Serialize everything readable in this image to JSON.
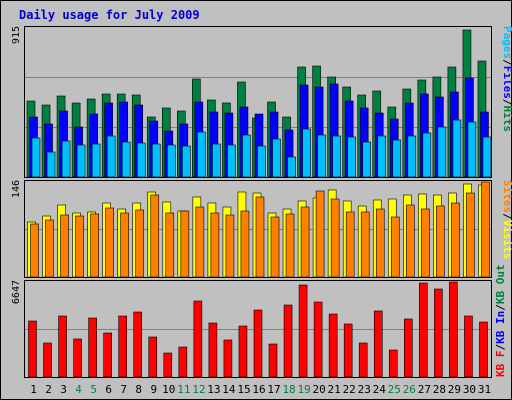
{
  "chart_data": [
    {
      "type": "bar",
      "title": "Daily usage for July 2009",
      "categories": [
        "1",
        "2",
        "3",
        "4",
        "5",
        "6",
        "7",
        "8",
        "9",
        "10",
        "11",
        "12",
        "13",
        "14",
        "15",
        "16",
        "17",
        "18",
        "19",
        "20",
        "21",
        "22",
        "23",
        "24",
        "25",
        "26",
        "27",
        "28",
        "29",
        "30",
        "31"
      ],
      "weekend_days": [
        "4",
        "5",
        "11",
        "12",
        "18",
        "19",
        "25",
        "26"
      ],
      "ymax_label": "915",
      "ylim": [
        0,
        915
      ],
      "legend": [
        "Hits",
        "Files",
        "Pages"
      ],
      "legend_separator": "/",
      "series": [
        {
          "name": "Hits",
          "color": "#008040",
          "values": [
            465,
            437,
            493,
            454,
            476,
            508,
            509,
            502,
            366,
            418,
            403,
            595,
            471,
            452,
            577,
            362,
            455,
            368,
            671,
            679,
            613,
            550,
            499,
            524,
            426,
            535,
            591,
            609,
            674,
            895,
            705
          ]
        },
        {
          "name": "Files",
          "color": "#0000ff",
          "values": [
            369,
            323,
            405,
            303,
            387,
            454,
            456,
            437,
            344,
            279,
            326,
            458,
            395,
            390,
            424,
            386,
            399,
            289,
            563,
            546,
            568,
            466,
            418,
            391,
            352,
            453,
            509,
            491,
            521,
            601,
            394
          ]
        },
        {
          "name": "Pages",
          "color": "#00bfff",
          "values": [
            238,
            153,
            217,
            193,
            200,
            252,
            213,
            210,
            204,
            198,
            187,
            272,
            199,
            196,
            254,
            190,
            230,
            122,
            292,
            258,
            249,
            246,
            212,
            249,
            225,
            249,
            271,
            302,
            348,
            338,
            242
          ]
        }
      ]
    },
    {
      "type": "bar",
      "categories": [
        "1",
        "2",
        "3",
        "4",
        "5",
        "6",
        "7",
        "8",
        "9",
        "10",
        "11",
        "12",
        "13",
        "14",
        "15",
        "16",
        "17",
        "18",
        "19",
        "20",
        "21",
        "22",
        "23",
        "24",
        "25",
        "26",
        "27",
        "28",
        "29",
        "30",
        "31"
      ],
      "ymax_label": "146",
      "ylim": [
        0,
        146
      ],
      "legend": [
        "Visits",
        "Sites"
      ],
      "legend_separator": "/",
      "series": [
        {
          "name": "Visits",
          "color": "#ffff00",
          "values": [
            83,
            93,
            110,
            97,
            99,
            112,
            104,
            112,
            130,
            114,
            101,
            121,
            113,
            107,
            130,
            127,
            97,
            104,
            116,
            120,
            132,
            116,
            108,
            117,
            119,
            124,
            126,
            124,
            128,
            142,
            140
          ]
        },
        {
          "name": "Sites",
          "color": "#ff8000",
          "values": [
            80,
            86,
            95,
            93,
            96,
            105,
            98,
            102,
            124,
            97,
            100,
            106,
            97,
            95,
            101,
            121,
            92,
            96,
            107,
            131,
            119,
            99,
            99,
            104,
            92,
            109,
            103,
            108,
            112,
            127,
            144
          ]
        }
      ]
    },
    {
      "type": "bar",
      "categories": [
        "1",
        "2",
        "3",
        "4",
        "5",
        "6",
        "7",
        "8",
        "9",
        "10",
        "11",
        "12",
        "13",
        "14",
        "15",
        "16",
        "17",
        "18",
        "19",
        "20",
        "21",
        "22",
        "23",
        "24",
        "25",
        "26",
        "27",
        "28",
        "29",
        "30",
        "31"
      ],
      "ymax_label": "6647",
      "ylim": [
        0,
        6647
      ],
      "legend": [
        "KB F",
        "KB In",
        "KB Out"
      ],
      "legend_separator": "/",
      "series": [
        {
          "name": "KB F",
          "color": "#ff0000",
          "values": [
            3891,
            2334,
            4240,
            2650,
            4088,
            3050,
            4204,
            4478,
            2745,
            1656,
            2077,
            5267,
            3761,
            2545,
            3510,
            4639,
            2257,
            5006,
            6362,
            5222,
            4340,
            3645,
            2334,
            4580,
            1865,
            3996,
            6503,
            6087,
            6570,
            4233,
            3818
          ]
        }
      ]
    }
  ]
}
